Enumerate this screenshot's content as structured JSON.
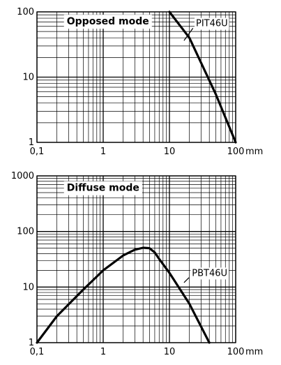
{
  "chart_data": [
    {
      "type": "line",
      "title": "",
      "xlabel": "",
      "ylabel": "",
      "xscale": "log",
      "yscale": "log",
      "xlim": [
        0.1,
        100
      ],
      "ylim": [
        1,
        100
      ],
      "xticks": [
        "0,1",
        "1",
        "10",
        "100"
      ],
      "yticks": [
        "1",
        "10",
        "100"
      ],
      "x_unit": "mm",
      "grid": true,
      "annotation": "Opposed mode",
      "series": [
        {
          "name": "PIT46U",
          "x": [
            10,
            20,
            50,
            100
          ],
          "y": [
            100,
            40,
            5.5,
            1
          ]
        }
      ]
    },
    {
      "type": "line",
      "title": "",
      "xlabel": "",
      "ylabel": "",
      "xscale": "log",
      "yscale": "log",
      "xlim": [
        0.1,
        100
      ],
      "ylim": [
        1,
        1000
      ],
      "xticks": [
        "0,1",
        "1",
        "10",
        "100"
      ],
      "yticks": [
        "1",
        "10",
        "100",
        "1000"
      ],
      "x_unit": "mm",
      "grid": true,
      "annotation": "Diffuse mode",
      "series": [
        {
          "name": "PBT46U",
          "x": [
            0.1,
            0.2,
            0.5,
            1,
            2,
            3,
            4,
            5,
            6,
            7,
            10,
            20,
            40
          ],
          "y": [
            1,
            3,
            9,
            20,
            37,
            47,
            51,
            50,
            42,
            32,
            18,
            5,
            1
          ]
        }
      ]
    }
  ]
}
